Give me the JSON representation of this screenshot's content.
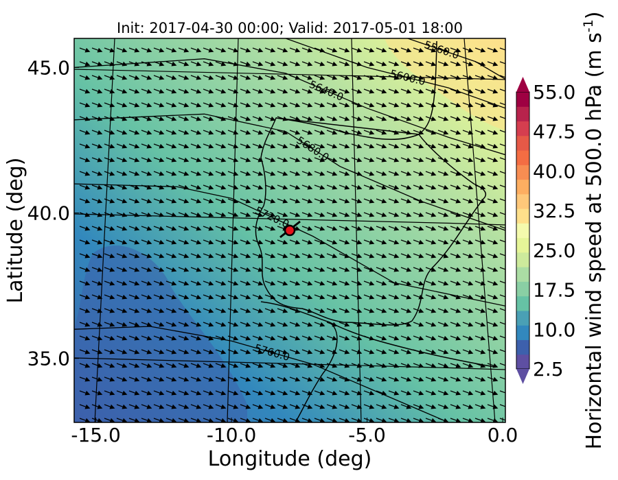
{
  "chart_data": {
    "type": "heatmap",
    "title": "Init: 2017-04-30 00:00; Valid: 2017-05-01 18:00",
    "xlabel": "Longitude (deg)",
    "ylabel": "Latitude (deg)",
    "xlim": [
      -15.8,
      0.1
    ],
    "ylim": [
      32.8,
      46.0
    ],
    "xticks": [
      -15.0,
      -10.0,
      -5.0,
      0.0
    ],
    "xtick_labels": [
      "-15.0",
      "-10.0",
      "-5.0",
      "0.0"
    ],
    "yticks": [
      35.0,
      40.0,
      45.0
    ],
    "ytick_labels": [
      "35.0",
      "40.0",
      "45.0"
    ],
    "field": "Horizontal wind speed at 500.0 hPa",
    "colorbar": {
      "label": "Horizontal wind speed at 500.0 hPa (m s",
      "label_exponent": "-1",
      "label_suffix": ")",
      "ticks": [
        2.5,
        10.0,
        17.5,
        25.0,
        32.5,
        40.0,
        47.5,
        55.0
      ],
      "tick_labels": [
        "2.5",
        "10.0",
        "17.5",
        "25.0",
        "32.5",
        "40.0",
        "47.5",
        "55.0"
      ],
      "min": 2.5,
      "max": 55.0,
      "extend": "both",
      "colors": [
        "#5e4fa2",
        "#3d60ac",
        "#3288bd",
        "#4aa0b5",
        "#66c2a5",
        "#8acfa4",
        "#abdda4",
        "#cdea9c",
        "#e6f598",
        "#f4faad",
        "#fee08b",
        "#fec87a",
        "#fdae61",
        "#f88d52",
        "#f46d43",
        "#e65947",
        "#d53e4f",
        "#b8234c",
        "#9e0142"
      ]
    },
    "geopotential_contours": {
      "labels": [
        "5600.0",
        "5560.0",
        "5640.0",
        "5680.0",
        "5720.0",
        "5760.0"
      ],
      "lines": [
        {
          "label": "5560.0",
          "points": [
            [
              -3.5,
              46.0
            ],
            [
              -1.0,
              45.2
            ],
            [
              0.1,
              44.6
            ]
          ]
        },
        {
          "label": "5600.0",
          "points": [
            [
              -8.0,
              46.0
            ],
            [
              -5.0,
              45.0
            ],
            [
              -2.0,
              44.3
            ],
            [
              0.1,
              43.6
            ]
          ]
        },
        {
          "label": "5640.0",
          "points": [
            [
              -15.8,
              45.0
            ],
            [
              -11.0,
              45.3
            ],
            [
              -8.0,
              44.8
            ],
            [
              -5.0,
              43.6
            ],
            [
              -2.0,
              42.6
            ],
            [
              0.1,
              42.0
            ]
          ]
        },
        {
          "label": "5680.0",
          "points": [
            [
              -15.8,
              43.2
            ],
            [
              -11.0,
              43.4
            ],
            [
              -8.0,
              42.8
            ],
            [
              -6.0,
              41.6
            ],
            [
              -3.0,
              40.4
            ],
            [
              0.1,
              39.4
            ]
          ]
        },
        {
          "label": "5720.0",
          "points": [
            [
              -15.8,
              41.0
            ],
            [
              -12.0,
              40.9
            ],
            [
              -10.0,
              40.5
            ],
            [
              -7.0,
              39.2
            ],
            [
              -4.0,
              37.6
            ],
            [
              0.1,
              36.8
            ]
          ]
        },
        {
          "label": "5760.0",
          "points": [
            [
              -15.8,
              36.0
            ],
            [
              -13.0,
              36.1
            ],
            [
              -10.0,
              35.6
            ],
            [
              -7.0,
              34.8
            ],
            [
              -5.0,
              34.0
            ],
            [
              -3.0,
              33.2
            ],
            [
              -2.0,
              32.8
            ]
          ]
        }
      ]
    },
    "marker": {
      "label": "site",
      "lon": -7.7,
      "lat": 39.4,
      "color": "#e4141b"
    },
    "wind_vectors": {
      "direction_deg": -20,
      "description": "uniform wind barbs pointing east-south-east"
    }
  }
}
